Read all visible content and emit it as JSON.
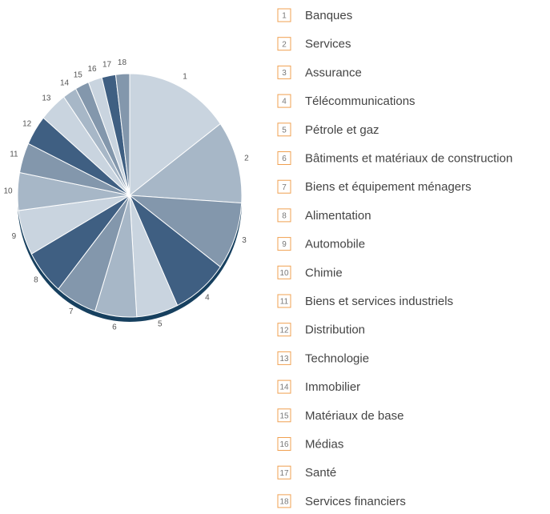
{
  "chart_data": {
    "type": "pie",
    "keys": [
      "1",
      "2",
      "3",
      "4",
      "5",
      "6",
      "7",
      "8",
      "9",
      "10",
      "11",
      "12",
      "13",
      "14",
      "15",
      "16",
      "17",
      "18"
    ],
    "categories": [
      "Banques",
      "Services",
      "Assurance",
      "Télécommunications",
      "Pétrole et gaz",
      "Bâtiments et matériaux de construction",
      "Biens et équipement ménagers",
      "Alimentation",
      "Automobile",
      "Chimie",
      "Biens et services industriels",
      "Distribution",
      "Technologie",
      "Immobilier",
      "Matériaux de base",
      "Médias",
      "Santé",
      "Services financiers"
    ],
    "values": [
      15,
      11,
      9,
      8,
      6,
      6,
      6,
      6,
      6,
      5,
      4,
      4,
      4,
      2,
      2,
      2,
      2,
      2
    ],
    "colors": [
      "#c9d4df",
      "#a7b7c7",
      "#8397ac",
      "#3f5f82",
      "#c9d4df",
      "#a7b7c7",
      "#8397ac",
      "#3f5f82",
      "#c9d4df",
      "#a7b7c7",
      "#8397ac",
      "#3f5f82",
      "#c9d4df",
      "#a7b7c7",
      "#8397ac",
      "#c9d4df",
      "#3f5f82",
      "#8397ac"
    ]
  }
}
